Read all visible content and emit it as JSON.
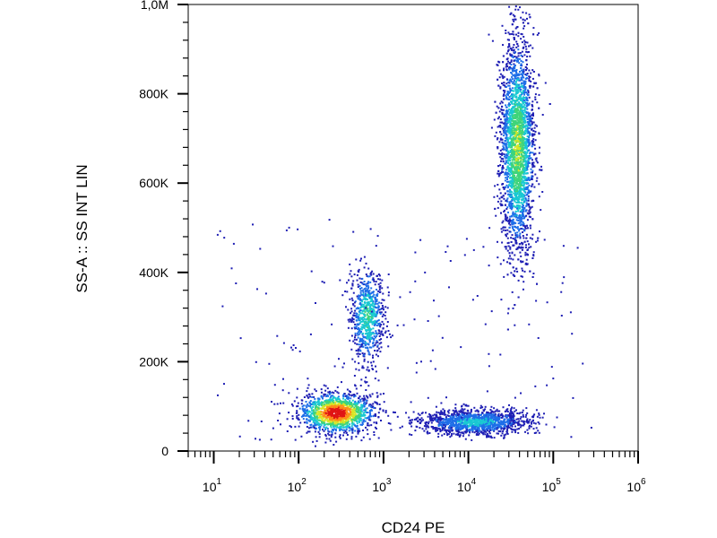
{
  "chart_data": {
    "type": "scatter",
    "subtype": "flow-cytometry-density-dot-plot",
    "title": "",
    "xlabel": "CD24 PE",
    "ylabel": "SS-A :: SS INT LIN",
    "x_scale": "log",
    "xlim": [
      5,
      1000000
    ],
    "ylim": [
      0,
      1000000
    ],
    "x_ticks": [
      {
        "value": 10,
        "base": "10",
        "exp": "1"
      },
      {
        "value": 100,
        "base": "10",
        "exp": "2"
      },
      {
        "value": 1000,
        "base": "10",
        "exp": "3"
      },
      {
        "value": 10000,
        "base": "10",
        "exp": "4"
      },
      {
        "value": 100000,
        "base": "10",
        "exp": "5"
      },
      {
        "value": 1000000,
        "base": "10",
        "exp": "6"
      }
    ],
    "y_ticks": [
      {
        "value": 0,
        "label": "0"
      },
      {
        "value": 200000,
        "label": "200K"
      },
      {
        "value": 400000,
        "label": "400K"
      },
      {
        "value": 600000,
        "label": "600K"
      },
      {
        "value": 800000,
        "label": "800K"
      },
      {
        "value": 1000000,
        "label": "1,0M"
      }
    ],
    "grid": false,
    "legend": "none",
    "color_scale": [
      "#1f1fb4",
      "#1e6ee8",
      "#19c8d2",
      "#3fd47a",
      "#d8e628",
      "#ff8c1a",
      "#e01414"
    ],
    "populations": [
      {
        "x_center": 280,
        "y_center": 85000,
        "x_spread_decades": 0.22,
        "y_spread": 22000,
        "count": 1400,
        "peak_density": 1.0
      },
      {
        "x_center": 650,
        "y_center": 300000,
        "x_spread_decades": 0.1,
        "y_spread": 55000,
        "count": 700,
        "peak_density": 0.45
      },
      {
        "x_center": 12000,
        "y_center": 65000,
        "x_spread_decades": 0.32,
        "y_spread": 14000,
        "count": 1300,
        "peak_density": 0.35
      },
      {
        "x_center": 38000,
        "y_center": 680000,
        "x_spread_decades": 0.1,
        "y_spread": 120000,
        "count": 3000,
        "peak_density": 0.6
      }
    ]
  }
}
